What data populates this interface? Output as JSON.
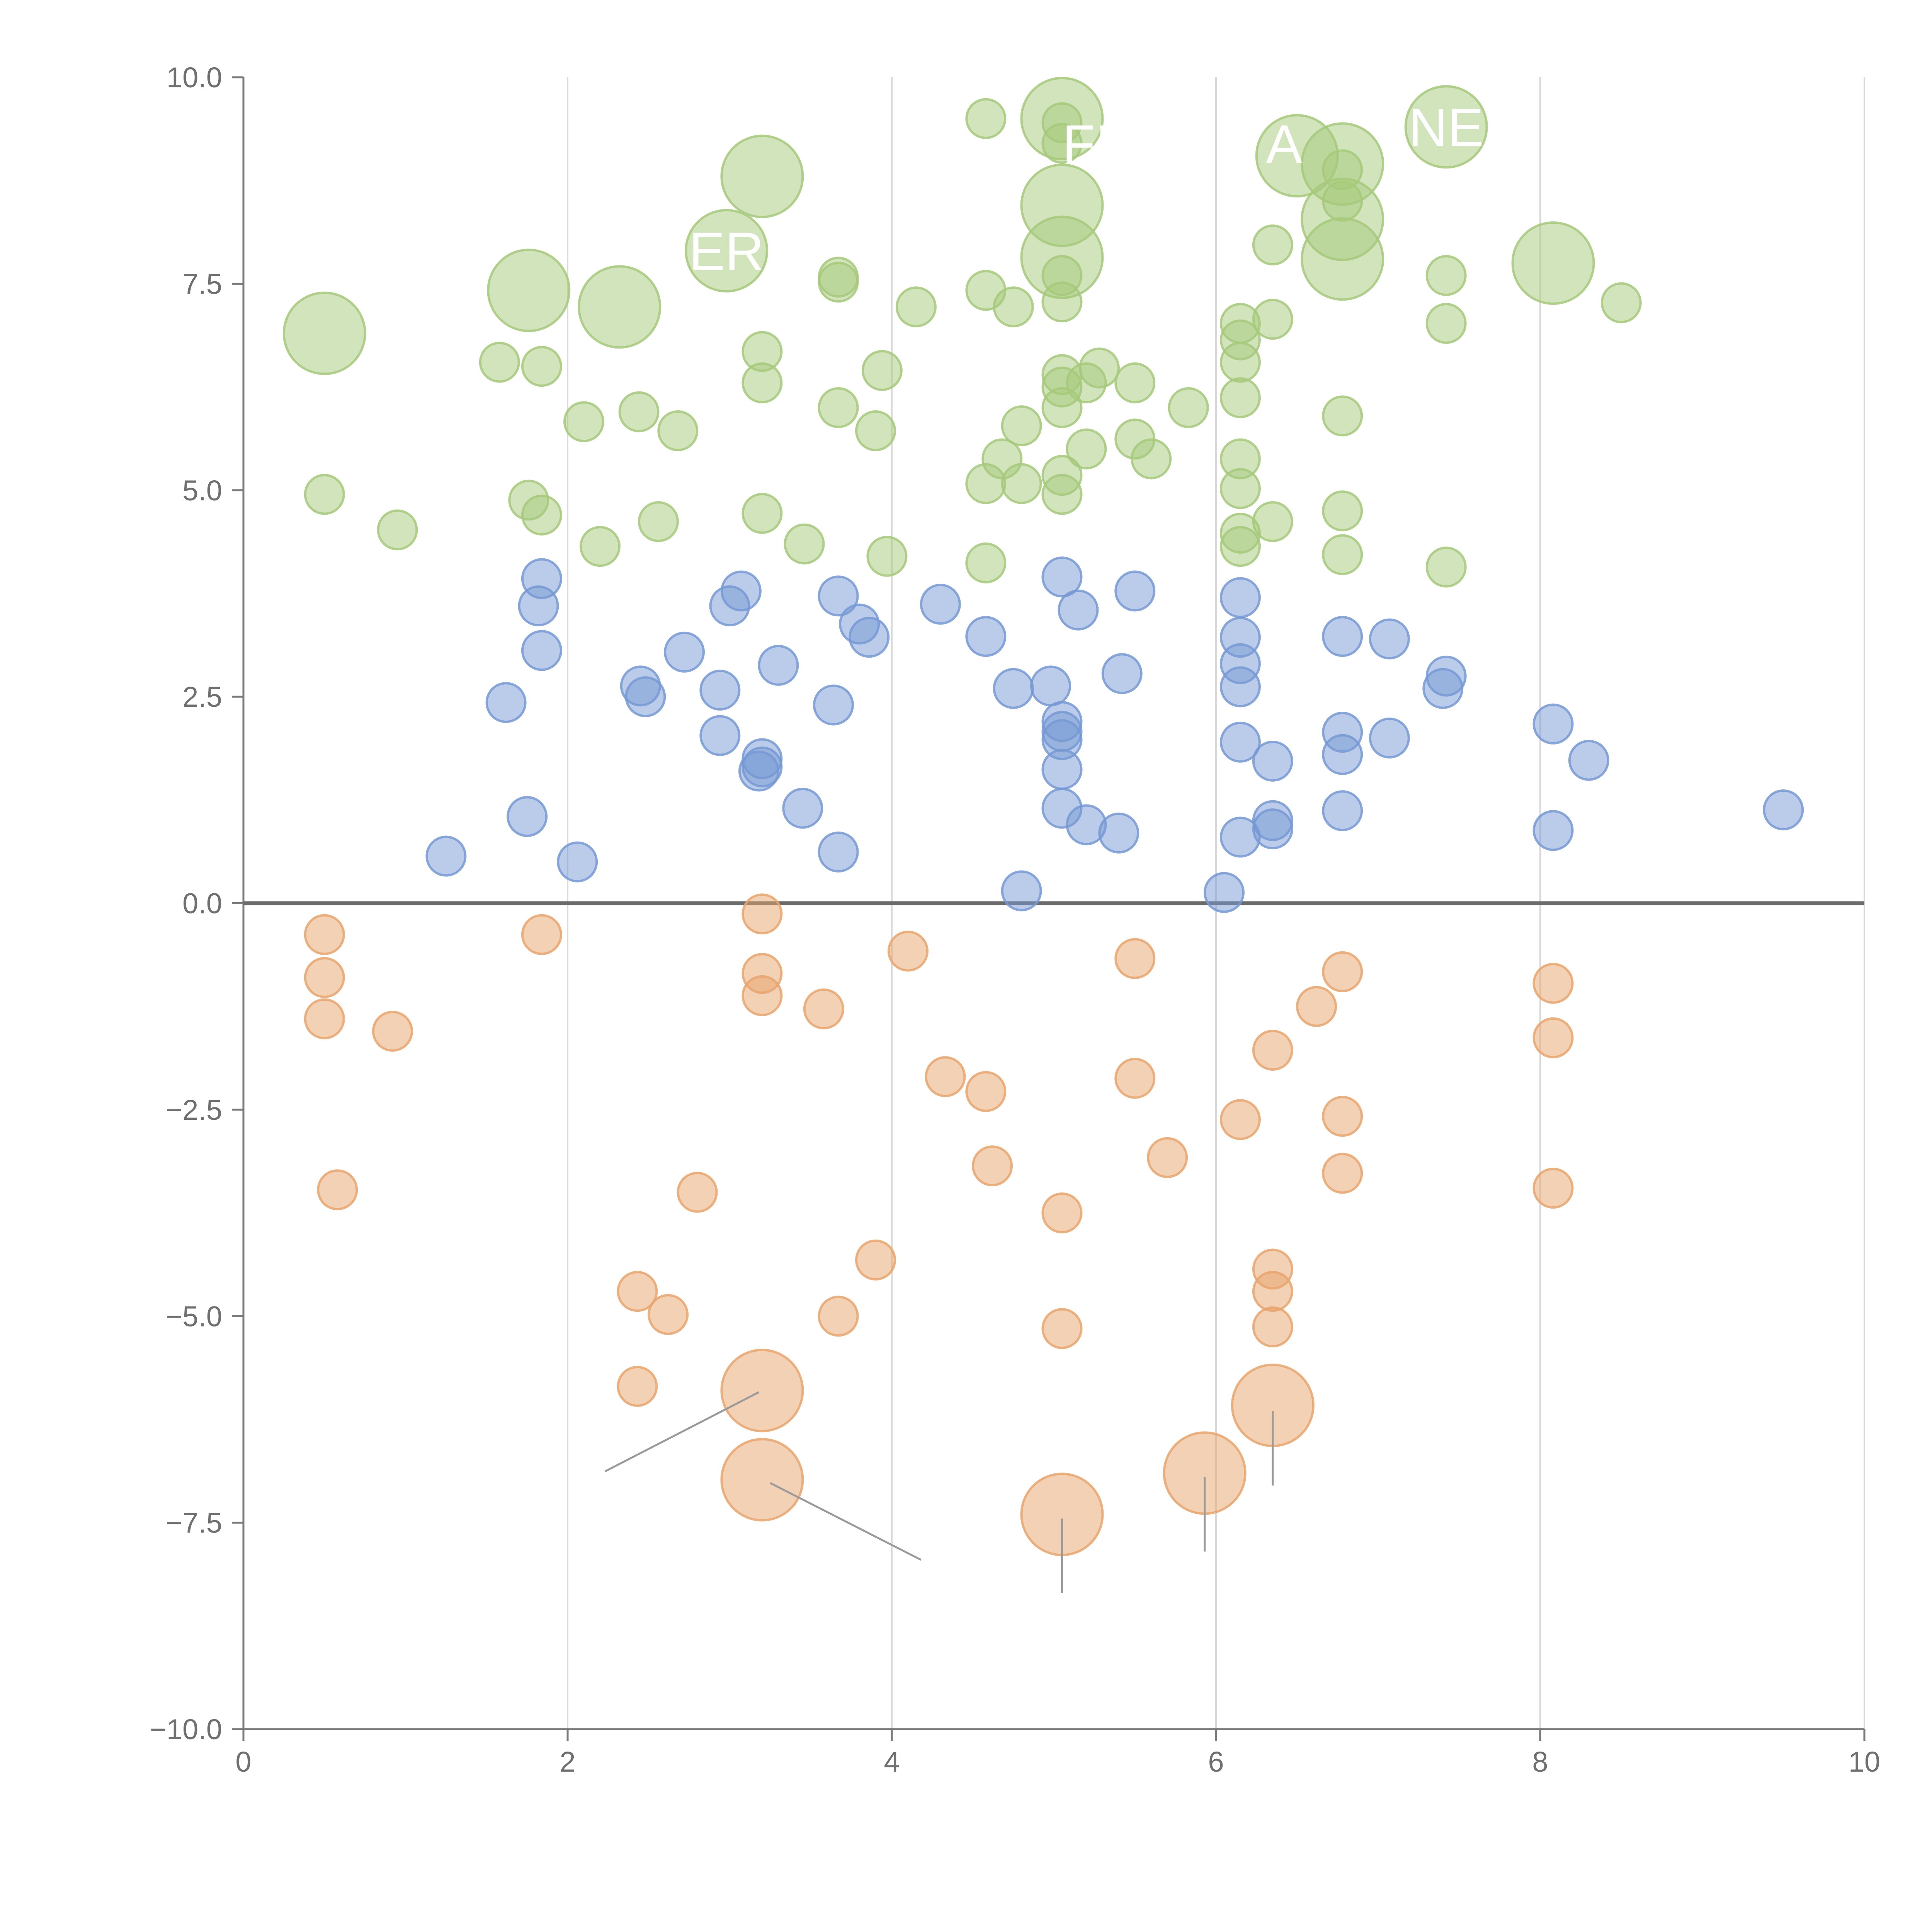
{
  "chart_data": {
    "type": "scatter",
    "title": "",
    "xlabel": "",
    "ylabel": "",
    "xlim": [
      0,
      10
    ],
    "ylim": [
      -10,
      10
    ],
    "grid": "vertical only",
    "x_ticks": [
      0,
      2,
      4,
      6,
      8,
      10
    ],
    "x_tick_labels": [
      "0",
      "2",
      "4",
      "6",
      "8",
      "10"
    ],
    "y_ticks": [
      -10,
      -7.5,
      -5,
      -2.5,
      0,
      2.5,
      5,
      7.5,
      10
    ],
    "y_tick_labels": [
      "−10.0",
      "−7.5",
      "−5.0",
      "−2.5",
      "0.0",
      "2.5",
      "5.0",
      "7.5",
      "10.0"
    ],
    "colors": {
      "green": "#a6c97a",
      "blue": "#7699d4",
      "orange": "#e8a46c"
    },
    "series": [
      {
        "name": "green",
        "points": [
          [
            0.5,
            6.9,
            2
          ],
          [
            1.76,
            7.42,
            2
          ],
          [
            2.32,
            7.22,
            2
          ],
          [
            2.98,
            7.9,
            2
          ],
          [
            3.2,
            8.8,
            2
          ],
          [
            5.05,
            9.5,
            2
          ],
          [
            5.05,
            8.45,
            2
          ],
          [
            5.05,
            7.82,
            2
          ],
          [
            6.5,
            9.05,
            2
          ],
          [
            6.78,
            8.95,
            2
          ],
          [
            6.78,
            8.28,
            2
          ],
          [
            6.78,
            7.8,
            2
          ],
          [
            7.42,
            9.4,
            2
          ],
          [
            8.08,
            7.75,
            2
          ],
          [
            4.58,
            9.5,
            1
          ],
          [
            5.05,
            9.45,
            1
          ],
          [
            5.05,
            9.2,
            1
          ],
          [
            6.78,
            8.88,
            1
          ],
          [
            6.78,
            8.5,
            1
          ],
          [
            6.35,
            7.97,
            1
          ],
          [
            3.67,
            7.58,
            1
          ],
          [
            3.67,
            7.52,
            1
          ],
          [
            4.15,
            7.22,
            1
          ],
          [
            4.58,
            7.42,
            1
          ],
          [
            4.75,
            7.22,
            1
          ],
          [
            5.05,
            7.28,
            1
          ],
          [
            5.05,
            7.6,
            1
          ],
          [
            7.42,
            7.6,
            1
          ],
          [
            7.42,
            7.02,
            1
          ],
          [
            8.5,
            7.27,
            1
          ],
          [
            6.15,
            7.02,
            1
          ],
          [
            6.15,
            6.82,
            1
          ],
          [
            6.35,
            7.07,
            1
          ],
          [
            1.58,
            6.55,
            1
          ],
          [
            1.84,
            6.5,
            1
          ],
          [
            3.2,
            6.68,
            1
          ],
          [
            3.2,
            6.3,
            1
          ],
          [
            3.94,
            6.45,
            1
          ],
          [
            5.05,
            6.4,
            1
          ],
          [
            5.05,
            6.25,
            1
          ],
          [
            5.2,
            6.3,
            1
          ],
          [
            5.28,
            6.48,
            1
          ],
          [
            5.5,
            6.3,
            1
          ],
          [
            5.05,
            6.0,
            1
          ],
          [
            5.83,
            6.0,
            1
          ],
          [
            6.15,
            6.55,
            1
          ],
          [
            6.15,
            6.12,
            1
          ],
          [
            2.1,
            5.83,
            1
          ],
          [
            2.44,
            5.95,
            1
          ],
          [
            2.68,
            5.72,
            1
          ],
          [
            3.67,
            6.0,
            1
          ],
          [
            3.9,
            5.72,
            1
          ],
          [
            4.68,
            5.38,
            1
          ],
          [
            4.8,
            5.78,
            1
          ],
          [
            5.2,
            5.5,
            1
          ],
          [
            5.5,
            5.62,
            1
          ],
          [
            5.6,
            5.38,
            1
          ],
          [
            6.78,
            5.9,
            1
          ],
          [
            6.15,
            5.38,
            1
          ],
          [
            4.58,
            5.08,
            1
          ],
          [
            4.8,
            5.08,
            1
          ],
          [
            5.05,
            5.18,
            1
          ],
          [
            5.05,
            4.95,
            1
          ],
          [
            6.15,
            5.02,
            1
          ],
          [
            0.5,
            4.95,
            1
          ],
          [
            0.95,
            4.52,
            1
          ],
          [
            1.76,
            4.88,
            1
          ],
          [
            1.84,
            4.7,
            1
          ],
          [
            2.2,
            4.32,
            1
          ],
          [
            2.56,
            4.62,
            1
          ],
          [
            3.2,
            4.72,
            1
          ],
          [
            3.46,
            4.35,
            1
          ],
          [
            3.97,
            4.2,
            1
          ],
          [
            4.58,
            4.12,
            1
          ],
          [
            6.15,
            4.48,
            1
          ],
          [
            6.15,
            4.32,
            1
          ],
          [
            6.35,
            4.62,
            1
          ],
          [
            6.78,
            4.75,
            1
          ],
          [
            6.78,
            4.22,
            1
          ],
          [
            7.42,
            4.07,
            1
          ]
        ]
      },
      {
        "name": "blue",
        "points": [
          [
            1.84,
            3.93,
            1
          ],
          [
            1.82,
            3.6,
            1
          ],
          [
            1.84,
            3.06,
            1
          ],
          [
            1.62,
            2.43,
            1
          ],
          [
            1.75,
            1.05,
            1
          ],
          [
            1.25,
            0.57,
            1
          ],
          [
            2.06,
            0.5,
            1
          ],
          [
            2.45,
            2.63,
            1
          ],
          [
            2.48,
            2.5,
            1
          ],
          [
            2.72,
            3.04,
            1
          ],
          [
            2.94,
            2.58,
            1
          ],
          [
            2.94,
            2.03,
            1
          ],
          [
            3.0,
            3.6,
            1
          ],
          [
            3.07,
            3.78,
            1
          ],
          [
            3.2,
            1.75,
            1
          ],
          [
            3.2,
            1.65,
            1
          ],
          [
            3.18,
            1.6,
            1
          ],
          [
            3.3,
            2.88,
            1
          ],
          [
            3.45,
            1.15,
            1
          ],
          [
            3.64,
            2.4,
            1
          ],
          [
            3.67,
            3.72,
            1
          ],
          [
            3.67,
            0.62,
            1
          ],
          [
            3.8,
            3.38,
            1
          ],
          [
            3.86,
            3.22,
            1
          ],
          [
            4.3,
            3.62,
            1
          ],
          [
            4.58,
            3.23,
            1
          ],
          [
            4.75,
            2.6,
            1
          ],
          [
            4.8,
            0.15,
            1
          ],
          [
            4.98,
            2.63,
            1
          ],
          [
            5.05,
            3.95,
            1
          ],
          [
            5.05,
            2.2,
            1
          ],
          [
            5.05,
            2.08,
            1
          ],
          [
            5.05,
            1.98,
            1
          ],
          [
            5.05,
            1.62,
            1
          ],
          [
            5.05,
            1.15,
            1
          ],
          [
            5.15,
            3.55,
            1
          ],
          [
            5.2,
            0.95,
            1
          ],
          [
            5.4,
            0.85,
            1
          ],
          [
            5.42,
            2.78,
            1
          ],
          [
            5.5,
            3.78,
            1
          ],
          [
            6.05,
            0.13,
            1
          ],
          [
            6.15,
            3.7,
            1
          ],
          [
            6.15,
            3.22,
            1
          ],
          [
            6.15,
            2.9,
            1
          ],
          [
            6.15,
            2.62,
            1
          ],
          [
            6.15,
            1.95,
            1
          ],
          [
            6.15,
            0.8,
            1
          ],
          [
            6.35,
            1.72,
            1
          ],
          [
            6.35,
            1.0,
            1
          ],
          [
            6.35,
            0.9,
            1
          ],
          [
            6.78,
            3.23,
            1
          ],
          [
            6.78,
            2.07,
            1
          ],
          [
            6.78,
            1.8,
            1
          ],
          [
            6.78,
            1.12,
            1
          ],
          [
            7.07,
            3.2,
            1
          ],
          [
            7.07,
            2.0,
            1
          ],
          [
            7.4,
            2.6,
            1
          ],
          [
            7.42,
            2.75,
            1
          ],
          [
            8.08,
            2.17,
            1
          ],
          [
            8.08,
            0.88,
            1
          ],
          [
            8.3,
            1.73,
            1
          ],
          [
            9.5,
            1.13,
            1
          ]
        ]
      },
      {
        "name": "orange",
        "points": [
          [
            0.5,
            -0.38,
            1
          ],
          [
            0.5,
            -0.9,
            1
          ],
          [
            0.5,
            -1.4,
            1
          ],
          [
            0.92,
            -1.55,
            1
          ],
          [
            0.58,
            -3.47,
            1
          ],
          [
            1.84,
            -0.38,
            1
          ],
          [
            2.43,
            -4.7,
            1
          ],
          [
            2.43,
            -5.85,
            1
          ],
          [
            2.62,
            -4.98,
            1
          ],
          [
            2.8,
            -3.5,
            1
          ],
          [
            3.2,
            -0.13,
            1
          ],
          [
            3.2,
            -0.85,
            1
          ],
          [
            3.2,
            -1.12,
            1
          ],
          [
            3.58,
            -1.28,
            1
          ],
          [
            3.67,
            -5.0,
            1
          ],
          [
            3.9,
            -4.32,
            1
          ],
          [
            4.1,
            -0.58,
            1
          ],
          [
            4.33,
            -2.1,
            1
          ],
          [
            4.58,
            -2.28,
            1
          ],
          [
            4.62,
            -3.18,
            1
          ],
          [
            5.05,
            -3.75,
            1
          ],
          [
            5.05,
            -5.15,
            1
          ],
          [
            5.5,
            -0.67,
            1
          ],
          [
            5.5,
            -2.12,
            1
          ],
          [
            5.7,
            -3.08,
            1
          ],
          [
            6.15,
            -2.62,
            1
          ],
          [
            6.35,
            -1.78,
            1
          ],
          [
            6.35,
            -4.43,
            1
          ],
          [
            6.35,
            -4.7,
            1
          ],
          [
            6.35,
            -5.13,
            1
          ],
          [
            6.62,
            -1.25,
            1
          ],
          [
            6.78,
            -0.83,
            1
          ],
          [
            6.78,
            -2.58,
            1
          ],
          [
            6.78,
            -3.27,
            1
          ],
          [
            8.08,
            -0.97,
            1
          ],
          [
            8.08,
            -1.63,
            1
          ],
          [
            8.08,
            -3.45,
            1
          ],
          [
            3.2,
            -5.9,
            2
          ],
          [
            3.2,
            -6.98,
            2
          ],
          [
            5.05,
            -7.4,
            2
          ],
          [
            5.93,
            -6.9,
            2
          ],
          [
            6.35,
            -6.08,
            2
          ]
        ]
      }
    ],
    "annotations": [
      {
        "text": "ER",
        "x": 2.98,
        "y": 7.9
      },
      {
        "text": "NE",
        "x": 7.42,
        "y": 9.4
      },
      {
        "text": "FI",
        "x": 5.2,
        "y": 9.2
      },
      {
        "text": "A",
        "x": 6.42,
        "y": 9.2
      }
    ],
    "leader_lines": [
      {
        "from": [
          3.18,
          -5.92
        ],
        "to": [
          2.23,
          -6.88
        ]
      },
      {
        "from": [
          3.25,
          -7.02
        ],
        "to": [
          4.18,
          -7.95
        ]
      },
      {
        "from": [
          5.05,
          -7.45
        ],
        "to": [
          5.05,
          -8.35
        ]
      },
      {
        "from": [
          5.93,
          -6.95
        ],
        "to": [
          5.93,
          -7.85
        ]
      },
      {
        "from": [
          6.35,
          -6.15
        ],
        "to": [
          6.35,
          -7.05
        ]
      }
    ]
  }
}
